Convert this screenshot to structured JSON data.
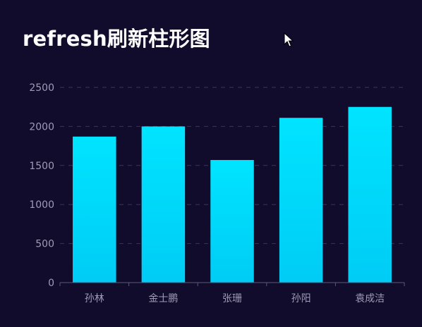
{
  "page": {
    "title": "refresh刷新柱形图"
  },
  "colors": {
    "background": "#110b2c",
    "bar_top": "#00e4ff",
    "bar_bottom": "#00ccf5",
    "grid": "#3a3556",
    "axis_label": "#9e9cb6",
    "title": "#ffffff"
  },
  "cursor_icon": "arrow-cursor-icon",
  "chart_data": {
    "type": "bar",
    "categories": [
      "孙林",
      "金士鹏",
      "张珊",
      "孙阳",
      "袁成洁"
    ],
    "values": [
      1870,
      2000,
      1570,
      2110,
      2250
    ],
    "ylim": [
      0,
      2500
    ],
    "yticks": [
      0,
      500,
      1000,
      1500,
      2000,
      2500
    ],
    "ytick_labels": [
      "0",
      "500",
      "1000",
      "1500",
      "2000",
      "2500"
    ],
    "grid": true,
    "grid_style": "dashed"
  }
}
